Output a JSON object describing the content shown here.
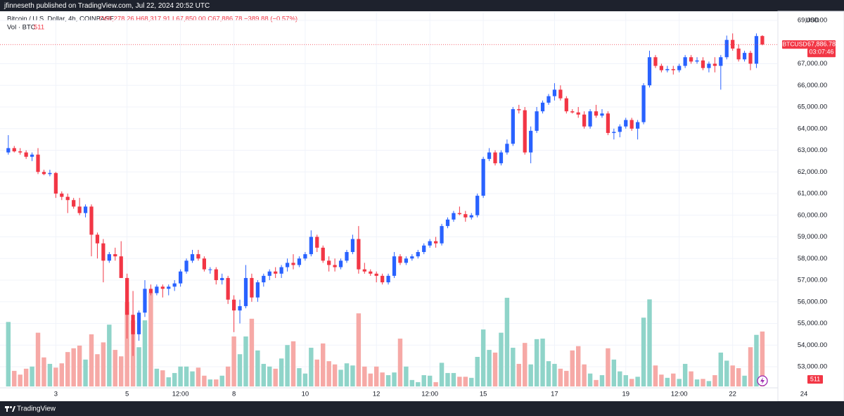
{
  "header": {
    "title": "jfinneseth published on TradingView.com, Jul 22, 2024 20:52 UTC"
  },
  "footer": {
    "brand": "TradingView"
  },
  "chart_data": {
    "type": "candlestick",
    "legend": {
      "symbol": "Bitcoin / U.S. Dollar, 4h, COINBASE",
      "ohlc": "O68,278.26 H68,317.91 L67,850.00 C67,886.78 −389.88 (−0.57%)",
      "volume_title": "Vol · BTC"
    },
    "currency": "USD",
    "last_label": {
      "symbol": "BTCUSD",
      "price": "67,886.78",
      "countdown": "03:07:46"
    },
    "up_color": "#2962ff",
    "down_color": "#f23645",
    "volume_up_color": "#8fd4c9",
    "volume_down_color": "#f6a9a6",
    "ylim": [
      52090,
      69390
    ],
    "yticks": [
      {
        "value": 53000,
        "label": "53,000.00"
      },
      {
        "value": 54000,
        "label": "54,000.00"
      },
      {
        "value": 55000,
        "label": "55,000.00"
      },
      {
        "value": 56000,
        "label": "56,000.00"
      },
      {
        "value": 57000,
        "label": "57,000.00"
      },
      {
        "value": 58000,
        "label": "58,000.00"
      },
      {
        "value": 59000,
        "label": "59,000.00"
      },
      {
        "value": 60000,
        "label": "60,000.00"
      },
      {
        "value": 61000,
        "label": "61,000.00"
      },
      {
        "value": 62000,
        "label": "62,000.00"
      },
      {
        "value": 63000,
        "label": "63,000.00"
      },
      {
        "value": 64000,
        "label": "64,000.00"
      },
      {
        "value": 65000,
        "label": "65,000.00"
      },
      {
        "value": 66000,
        "label": "66,000.00"
      },
      {
        "value": 67000,
        "label": "67,000.00"
      },
      {
        "value": 69000,
        "label": "69,000.00"
      }
    ],
    "xlim": [
      -1.4,
      129.5
    ],
    "xticks": [
      {
        "value": 8,
        "label": "3"
      },
      {
        "value": 20,
        "label": "5"
      },
      {
        "value": 29,
        "label": "12:00"
      },
      {
        "value": 38,
        "label": "8"
      },
      {
        "value": 50,
        "label": "10"
      },
      {
        "value": 62,
        "label": "12"
      },
      {
        "value": 71,
        "label": "12:00"
      },
      {
        "value": 80,
        "label": "15"
      },
      {
        "value": 92,
        "label": "17"
      },
      {
        "value": 104,
        "label": "19"
      },
      {
        "value": 113,
        "label": "12:00"
      },
      {
        "value": 122,
        "label": "22"
      },
      {
        "value": 134,
        "label": "24"
      }
    ],
    "open": [
      62900,
      63100,
      62950,
      62900,
      62700,
      62800,
      62000,
      61900,
      61950,
      61000,
      60850,
      60700,
      60400,
      60100,
      60400,
      59100,
      58700,
      57900,
      58200,
      58100,
      57100,
      55400,
      54500,
      55500,
      56600,
      56400,
      56700,
      56600,
      56700,
      56850,
      57400,
      57900,
      58200,
      58000,
      57500,
      57500,
      57000,
      57100,
      56100,
      55600,
      55800,
      57100,
      56200,
      56900,
      57200,
      57400,
      57300,
      57600,
      57800,
      57700,
      58000,
      58200,
      59000,
      58500,
      57900,
      57700,
      57600,
      57900,
      58300,
      58900,
      57500,
      57400,
      57300,
      57200,
      56900,
      57200,
      58100,
      57800,
      58000,
      58100,
      58300,
      58600,
      58800,
      58700,
      59500,
      59800,
      60100,
      60050,
      59900,
      60000,
      60900,
      62600,
      62900,
      62400,
      62900,
      63300,
      64900,
      64850,
      62900,
      63900,
      64800,
      65200,
      65500,
      65800,
      65400,
      64800,
      64750,
      64650,
      64100,
      64800,
      64600,
      64700,
      63800,
      63850,
      64100,
      64400,
      64000,
      64300,
      66000,
      67300,
      66900,
      66700,
      66750,
      66700,
      66900,
      67300,
      67100,
      67150,
      66800,
      67000,
      66900,
      67300,
      68100,
      67700,
      67200,
      67500,
      67000,
      68278.26
    ],
    "high": [
      63700,
      63200,
      63100,
      63000,
      62900,
      63100,
      62100,
      62100,
      62000,
      61100,
      61000,
      60800,
      60800,
      60500,
      60500,
      59200,
      58900,
      58300,
      58500,
      58800,
      57300,
      56500,
      55600,
      57000,
      56800,
      56800,
      56800,
      56800,
      57000,
      57500,
      58000,
      58400,
      58400,
      58100,
      57600,
      57600,
      57300,
      57200,
      56300,
      56100,
      57700,
      57300,
      57000,
      57300,
      57500,
      57600,
      57700,
      58000,
      58200,
      58100,
      58300,
      59300,
      59100,
      58600,
      58100,
      58000,
      58000,
      58400,
      59100,
      59500,
      57800,
      57500,
      57400,
      57300,
      57300,
      58300,
      58200,
      58100,
      58200,
      58400,
      58700,
      58900,
      59000,
      59600,
      59900,
      60200,
      60400,
      60200,
      60100,
      61000,
      62700,
      63100,
      63000,
      63000,
      63500,
      65000,
      65100,
      65000,
      64100,
      65000,
      65300,
      65600,
      66100,
      66000,
      65500,
      64900,
      65000,
      64800,
      64900,
      65100,
      64900,
      64800,
      64000,
      64200,
      64500,
      64500,
      64400,
      66100,
      67600,
      67400,
      67000,
      66900,
      66900,
      67000,
      67400,
      67400,
      67300,
      67300,
      67100,
      67300,
      67400,
      68300,
      68400,
      67900,
      67600,
      67600,
      68400,
      68317.91
    ],
    "low": [
      62800,
      62900,
      62800,
      62600,
      62500,
      61900,
      61850,
      61800,
      60800,
      60700,
      60100,
      60300,
      60000,
      59900,
      58100,
      58000,
      56900,
      57800,
      57900,
      57100,
      54300,
      53500,
      54200,
      55300,
      56300,
      56300,
      56200,
      56300,
      56500,
      56700,
      57300,
      57800,
      57900,
      57400,
      57300,
      56800,
      56800,
      55900,
      54600,
      55000,
      55700,
      56000,
      56000,
      56700,
      57000,
      57100,
      57100,
      57400,
      57500,
      57600,
      57900,
      58100,
      58300,
      57800,
      57400,
      57400,
      57500,
      57800,
      58200,
      57300,
      57300,
      57200,
      56900,
      56800,
      56800,
      57100,
      57700,
      57700,
      57900,
      58000,
      58200,
      58500,
      58500,
      58600,
      59400,
      59700,
      60000,
      59700,
      59800,
      59900,
      60800,
      62500,
      62300,
      62300,
      62800,
      63200,
      64700,
      62800,
      62400,
      63800,
      64700,
      65100,
      65300,
      65300,
      64700,
      64700,
      64500,
      64000,
      64000,
      64500,
      64500,
      63700,
      63500,
      63600,
      64000,
      63900,
      63500,
      64200,
      65900,
      66800,
      66600,
      66600,
      66500,
      66600,
      66800,
      67000,
      67000,
      66700,
      66600,
      66600,
      65800,
      67200,
      67600,
      67100,
      67100,
      66700,
      66800,
      67850
    ],
    "close": [
      63100,
      62950,
      62900,
      62700,
      62800,
      62000,
      61900,
      61950,
      61000,
      60850,
      60700,
      60400,
      60100,
      60400,
      59100,
      58700,
      57900,
      58200,
      58100,
      57100,
      55400,
      54500,
      55500,
      56600,
      56400,
      56700,
      56600,
      56700,
      56850,
      57400,
      57900,
      58200,
      58000,
      57500,
      57500,
      57000,
      57100,
      56100,
      55600,
      55800,
      57100,
      56200,
      56900,
      57200,
      57400,
      57300,
      57600,
      57800,
      57700,
      58000,
      58200,
      59000,
      58500,
      57900,
      57700,
      57600,
      57900,
      58300,
      58900,
      57500,
      57400,
      57300,
      57200,
      56900,
      57200,
      58100,
      57800,
      58000,
      58100,
      58300,
      58600,
      58800,
      58700,
      59500,
      59800,
      60100,
      60050,
      59900,
      60000,
      60900,
      62600,
      62900,
      62400,
      62900,
      63300,
      64900,
      64850,
      62900,
      63900,
      64800,
      65200,
      65500,
      65800,
      65400,
      64800,
      64750,
      64650,
      64100,
      64800,
      64600,
      64700,
      63800,
      63850,
      64100,
      64400,
      64000,
      64300,
      66000,
      67300,
      66900,
      66700,
      66750,
      66700,
      66900,
      67300,
      67100,
      67150,
      66800,
      67000,
      66900,
      67300,
      68100,
      67700,
      67200,
      67500,
      67000,
      68276.66,
      67886.78
    ],
    "volume": [
      600,
      145,
      110,
      165,
      185,
      500,
      270,
      210,
      175,
      215,
      320,
      355,
      380,
      250,
      485,
      300,
      410,
      575,
      340,
      280,
      785,
      615,
      365,
      615,
      870,
      165,
      150,
      85,
      125,
      185,
      185,
      140,
      175,
      100,
      65,
      65,
      100,
      185,
      465,
      300,
      465,
      630,
      335,
      210,
      185,
      165,
      260,
      385,
      420,
      170,
      120,
      360,
      250,
      400,
      235,
      205,
      155,
      215,
      195,
      680,
      185,
      120,
      185,
      130,
      105,
      130,
      445,
      185,
      60,
      40,
      105,
      100,
      40,
      220,
      125,
      125,
      90,
      90,
      80,
      275,
      530,
      340,
      315,
      500,
      825,
      360,
      210,
      405,
      205,
      440,
      445,
      235,
      210,
      165,
      145,
      335,
      375,
      205,
      120,
      60,
      105,
      355,
      250,
      140,
      105,
      70,
      90,
      640,
      810,
      195,
      110,
      80,
      120,
      70,
      210,
      140,
      65,
      70,
      50,
      105,
      315,
      240,
      195,
      170,
      100,
      365,
      480,
      511
    ]
  }
}
